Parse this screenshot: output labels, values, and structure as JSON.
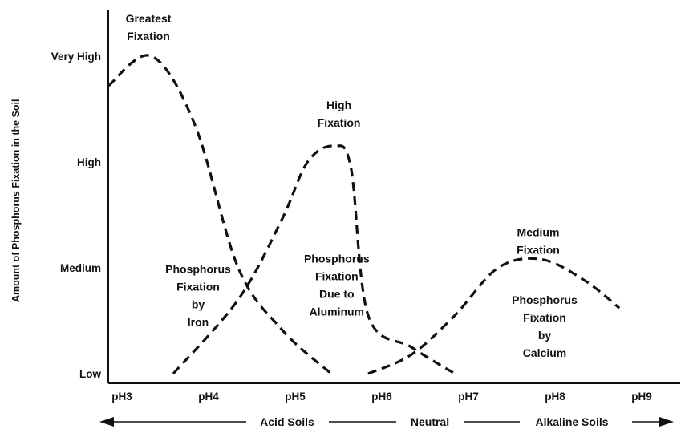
{
  "chart_data": {
    "type": "line",
    "ylabel": "Amount of Phosphorus Fixation in the Soil",
    "xlabel": "",
    "x_ticks": [
      "pH3",
      "pH4",
      "pH5",
      "pH6",
      "pH7",
      "pH8",
      "pH9"
    ],
    "y_ticks": [
      "Low",
      "Medium",
      "High",
      "Very High"
    ],
    "xlim": [
      3,
      9.3
    ],
    "ylim": [
      0,
      3.2
    ],
    "series": [
      {
        "name": "Phosphorus Fixation by Iron",
        "label_lines": [
          "Phosphorus",
          "Fixation",
          "by",
          "Iron"
        ],
        "points": [
          [
            3.0,
            2.72
          ],
          [
            3.5,
            3.0
          ],
          [
            4.0,
            2.35
          ],
          [
            4.5,
            1.0
          ],
          [
            5.0,
            0.42
          ],
          [
            5.5,
            0.05
          ],
          [
            5.6,
            0.0
          ]
        ]
      },
      {
        "name": "Phosphorus Fixation Due to Aluminum",
        "label_lines": [
          "Phosphorus",
          "Fixation",
          "Due to",
          "Aluminum"
        ],
        "points": [
          [
            3.75,
            0.0
          ],
          [
            4.5,
            0.7
          ],
          [
            5.0,
            1.45
          ],
          [
            5.3,
            2.0
          ],
          [
            5.6,
            2.15
          ],
          [
            5.8,
            1.95
          ],
          [
            6.0,
            0.55
          ],
          [
            6.5,
            0.25
          ],
          [
            7.0,
            0.0
          ]
        ]
      },
      {
        "name": "Phosphorus Fixation by Calcium",
        "label_lines": [
          "Phosphorus",
          "Fixation",
          "by",
          "Calcium"
        ],
        "points": [
          [
            6.0,
            0.0
          ],
          [
            6.5,
            0.18
          ],
          [
            7.0,
            0.55
          ],
          [
            7.5,
            1.0
          ],
          [
            8.0,
            1.08
          ],
          [
            8.5,
            0.88
          ],
          [
            8.9,
            0.62
          ]
        ]
      }
    ],
    "annotations": [
      {
        "lines": [
          "Greatest",
          "Fixation"
        ],
        "series_index": 0
      },
      {
        "lines": [
          "High",
          "Fixation"
        ],
        "series_index": 1
      },
      {
        "lines": [
          "Medium",
          "Fixation"
        ],
        "series_index": 2
      }
    ],
    "regions": {
      "acid": "Acid Soils",
      "neutral": "Neutral",
      "alkaline": "Alkaline Soils"
    },
    "grid": false,
    "legend": "none"
  }
}
